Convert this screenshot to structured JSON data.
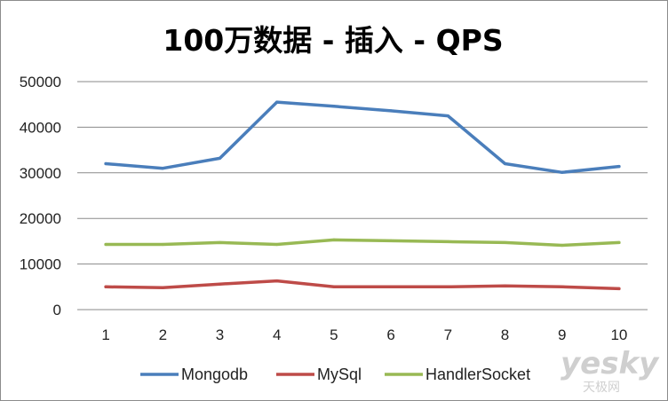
{
  "chart_data": {
    "type": "line",
    "title": "100万数据 - 插入 - QPS",
    "categories": [
      "1",
      "2",
      "3",
      "4",
      "5",
      "6",
      "7",
      "8",
      "9",
      "10"
    ],
    "ylim": [
      0,
      50000
    ],
    "yticks": [
      0,
      10000,
      20000,
      30000,
      40000,
      50000
    ],
    "grid": true,
    "legend_position": "bottom",
    "series": [
      {
        "name": "Mongodb",
        "color": "#4a7ebb",
        "values": [
          32000,
          31000,
          33200,
          45500,
          44600,
          43600,
          42500,
          32000,
          30100,
          31400
        ]
      },
      {
        "name": "MySql",
        "color": "#be4b48",
        "values": [
          5000,
          4800,
          5600,
          6300,
          5000,
          5000,
          5000,
          5200,
          5000,
          4600
        ]
      },
      {
        "name": "HandlerSocket",
        "color": "#98b954",
        "values": [
          14300,
          14300,
          14700,
          14300,
          15300,
          15100,
          14900,
          14700,
          14100,
          14700
        ]
      }
    ]
  },
  "watermark": {
    "main": "yesky",
    "sub": "天极网"
  }
}
